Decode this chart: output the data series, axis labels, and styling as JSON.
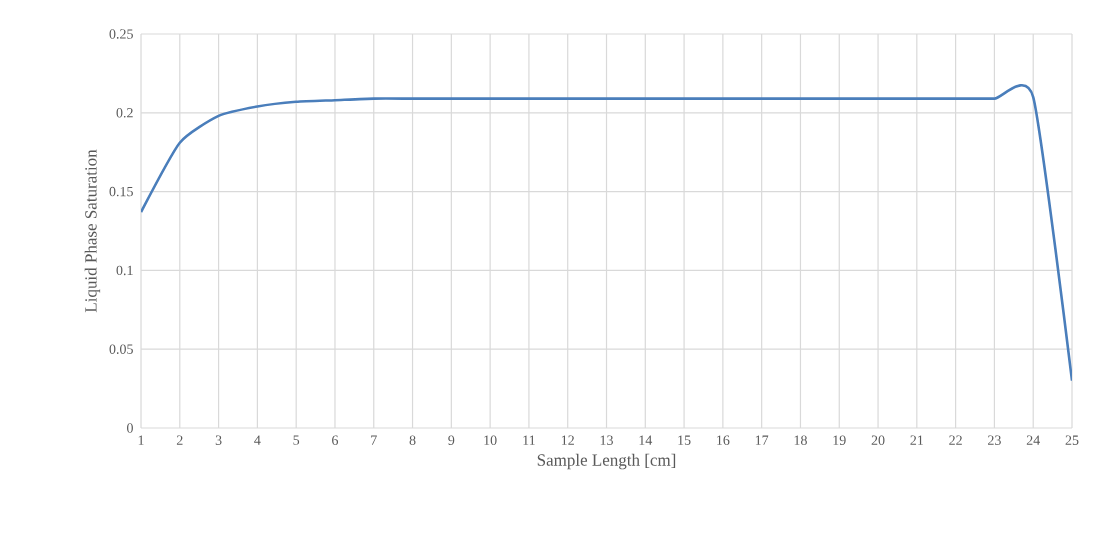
{
  "chart_data": {
    "type": "line",
    "xlabel": "Sample Length [cm]",
    "ylabel": "Liquid Phase Saturation",
    "x": [
      1,
      2,
      3,
      4,
      5,
      6,
      7,
      8,
      9,
      10,
      11,
      12,
      13,
      14,
      15,
      16,
      17,
      18,
      19,
      20,
      21,
      22,
      23,
      24,
      25
    ],
    "series": [
      {
        "color": "#4a7ebb",
        "values": [
          0.137,
          0.181,
          0.198,
          0.204,
          0.207,
          0.208,
          0.209,
          0.209,
          0.209,
          0.209,
          0.209,
          0.209,
          0.209,
          0.209,
          0.209,
          0.209,
          0.209,
          0.209,
          0.209,
          0.209,
          0.209,
          0.209,
          0.209,
          0.21,
          0.03
        ]
      }
    ],
    "xlim": [
      1,
      25
    ],
    "xticks": [
      1,
      2,
      3,
      4,
      5,
      6,
      7,
      8,
      9,
      10,
      11,
      12,
      13,
      14,
      15,
      16,
      17,
      18,
      19,
      20,
      21,
      22,
      23,
      24,
      25
    ],
    "ylim": [
      0,
      0.25
    ],
    "yticks": [
      {
        "value": 0,
        "label": "0"
      },
      {
        "value": 0.05,
        "label": "0.05"
      },
      {
        "value": 0.1,
        "label": "0.1"
      },
      {
        "value": 0.15,
        "label": "0.15"
      },
      {
        "value": 0.2,
        "label": "0.2"
      },
      {
        "value": 0.25,
        "label": "0.25"
      }
    ],
    "grid": true,
    "line_style": "solid",
    "marker": "none"
  }
}
